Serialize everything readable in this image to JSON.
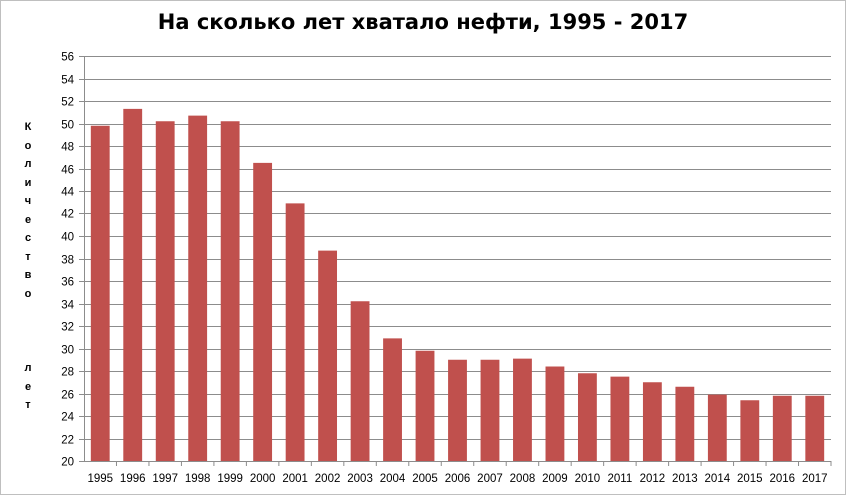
{
  "chart_data": {
    "type": "bar",
    "title": "На сколько лет хватало нефти, 1995 - 2017",
    "ylabel": "Количество лет",
    "xlabel": "",
    "categories": [
      "1995",
      "1996",
      "1997",
      "1998",
      "1999",
      "2000",
      "2001",
      "2002",
      "2003",
      "2004",
      "2005",
      "2006",
      "2007",
      "2008",
      "2009",
      "2010",
      "2011",
      "2012",
      "2013",
      "2014",
      "2015",
      "2016",
      "2017"
    ],
    "values": [
      49.8,
      51.3,
      50.2,
      50.7,
      50.2,
      46.5,
      42.9,
      38.7,
      34.2,
      30.9,
      29.8,
      29.0,
      29.0,
      29.1,
      28.4,
      27.8,
      27.5,
      27.0,
      26.6,
      25.9,
      25.4,
      25.8,
      25.8
    ],
    "ylim": [
      20,
      56
    ],
    "yticks": [
      "20",
      "22",
      "24",
      "26",
      "28",
      "30",
      "32",
      "34",
      "36",
      "38",
      "40",
      "42",
      "44",
      "46",
      "48",
      "50",
      "52",
      "54",
      "56"
    ],
    "grid": true,
    "legend": "none",
    "bar_color": "#c0504d"
  }
}
